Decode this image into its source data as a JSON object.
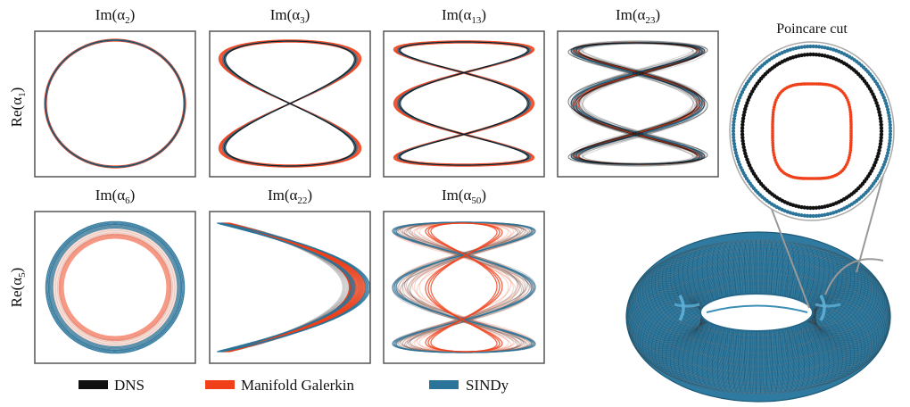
{
  "colors": {
    "dns": "#111111",
    "galerkin": "#f0401a",
    "sindy": "#2a7399"
  },
  "row_labels": [
    {
      "base": "Re(α",
      "sub": "1",
      "close": ")"
    },
    {
      "base": "Re(α",
      "sub": "5",
      "close": ")"
    }
  ],
  "panels": [
    {
      "title": {
        "base": "Im(α",
        "sub": "2",
        "close": ")"
      },
      "kind": "circle"
    },
    {
      "title": {
        "base": "Im(α",
        "sub": "3",
        "close": ")"
      },
      "kind": "lissajous2"
    },
    {
      "title": {
        "base": "Im(α",
        "sub": "13",
        "close": ")"
      },
      "kind": "lissajous3"
    },
    {
      "title": {
        "base": "Im(α",
        "sub": "23",
        "close": ")"
      },
      "kind": "lissajous-noisy"
    },
    {
      "title": {
        "base": "Im(α",
        "sub": "6",
        "close": ")"
      },
      "kind": "annulus"
    },
    {
      "title": {
        "base": "Im(α",
        "sub": "22",
        "close": ")"
      },
      "kind": "chevron"
    },
    {
      "title": {
        "base": "Im(α",
        "sub": "50",
        "close": ")"
      },
      "kind": "lissajous3-spread"
    }
  ],
  "poincare": {
    "title": "Poincare cut"
  },
  "legend": [
    {
      "label": "DNS",
      "color_key": "dns"
    },
    {
      "label": "Manifold Galerkin",
      "color_key": "galerkin"
    },
    {
      "label": "SINDy",
      "color_key": "sindy"
    }
  ]
}
